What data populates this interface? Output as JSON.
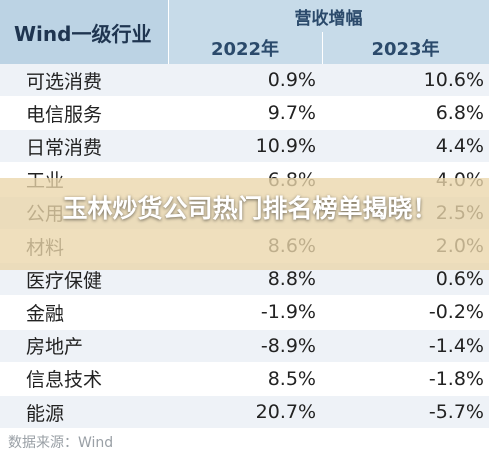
{
  "table": {
    "corner_header": "Wind一级行业",
    "group_header": "营收增幅",
    "years": [
      "2022年",
      "2023年"
    ],
    "rows": [
      {
        "name": "可选消费",
        "v2022": "0.9%",
        "v2023": "10.6%"
      },
      {
        "name": "电信服务",
        "v2022": "9.7%",
        "v2023": "6.8%"
      },
      {
        "name": "日常消费",
        "v2022": "10.9%",
        "v2023": "4.4%"
      },
      {
        "name": "工业",
        "v2022": "6.8%",
        "v2023": "4.0%"
      },
      {
        "name": "公用",
        "v2022": "",
        "v2023": "2.5%"
      },
      {
        "name": "材料",
        "v2022": "8.6%",
        "v2023": "2.0%"
      },
      {
        "name": "医疗保健",
        "v2022": "8.8%",
        "v2023": "0.6%"
      },
      {
        "name": "金融",
        "v2022": "-1.9%",
        "v2023": "-0.2%"
      },
      {
        "name": "房地产",
        "v2022": "-8.9%",
        "v2023": "-1.4%"
      },
      {
        "name": "信息技术",
        "v2022": "8.5%",
        "v2023": "-1.8%"
      },
      {
        "name": "能源",
        "v2022": "20.7%",
        "v2023": "-5.7%"
      }
    ]
  },
  "source": "数据来源：Wind",
  "overlay": {
    "title": "玉林炒货公司热门排名榜单揭晓！"
  }
}
